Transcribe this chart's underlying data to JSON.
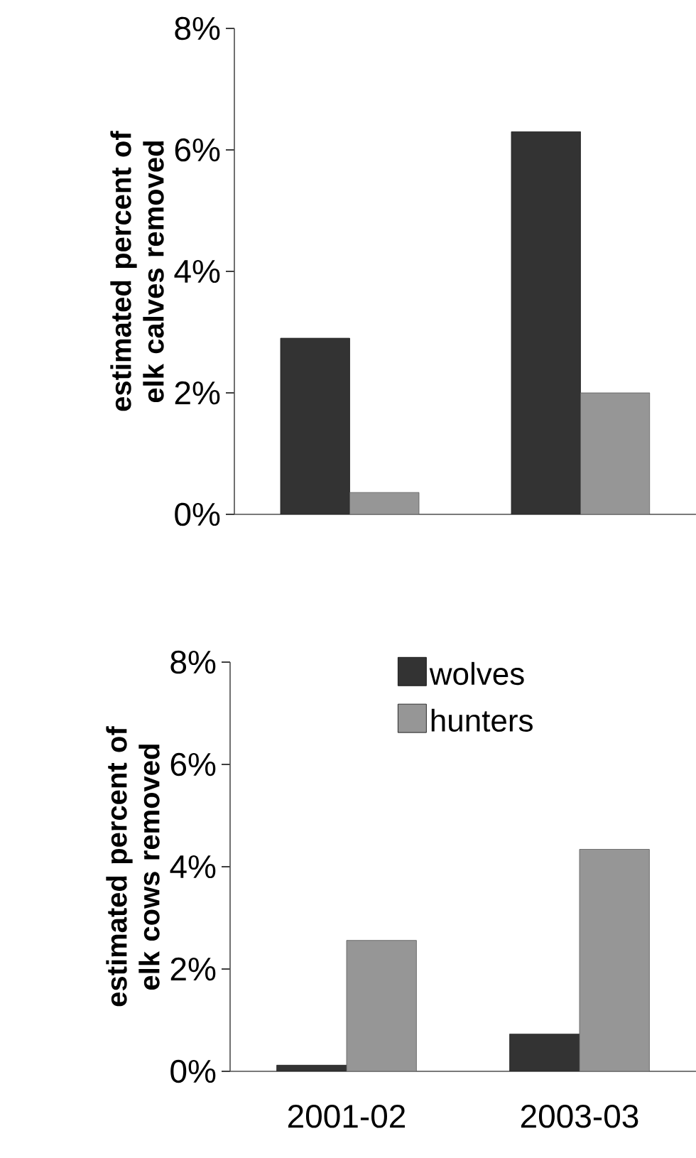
{
  "chart_data": [
    {
      "type": "bar",
      "categories": [
        null,
        null
      ],
      "ylabel": "estimated percent of elk calves  removed",
      "ylim": [
        0,
        8
      ],
      "yticks": [
        {
          "value": 0,
          "label": "0%"
        },
        {
          "value": 2,
          "label": "2%"
        },
        {
          "value": 4,
          "label": "4%"
        },
        {
          "value": 6,
          "label": "6%"
        },
        {
          "value": 8,
          "label": "8%"
        }
      ],
      "series": [
        {
          "color": "#333333",
          "values": [
            2.9,
            6.3
          ]
        },
        {
          "color": "#969696",
          "values": [
            0.36,
            2.0
          ]
        }
      ],
      "legend": false
    },
    {
      "type": "bar",
      "categories": [
        "2001-02",
        "2003-03"
      ],
      "ylabel": "estimated percent of elk cows removed",
      "ylim": [
        0,
        8
      ],
      "yticks": [
        {
          "value": 0,
          "label": "0%"
        },
        {
          "value": 2,
          "label": "2%"
        },
        {
          "value": 4,
          "label": "4%"
        },
        {
          "value": 6,
          "label": "6%"
        },
        {
          "value": 8,
          "label": "8%"
        }
      ],
      "series": [
        {
          "name": "wolves",
          "color": "#333333",
          "values": [
            0.12,
            0.73
          ]
        },
        {
          "name": "hunters",
          "color": "#969696",
          "values": [
            2.56,
            4.34
          ]
        }
      ],
      "legend": "top"
    }
  ]
}
